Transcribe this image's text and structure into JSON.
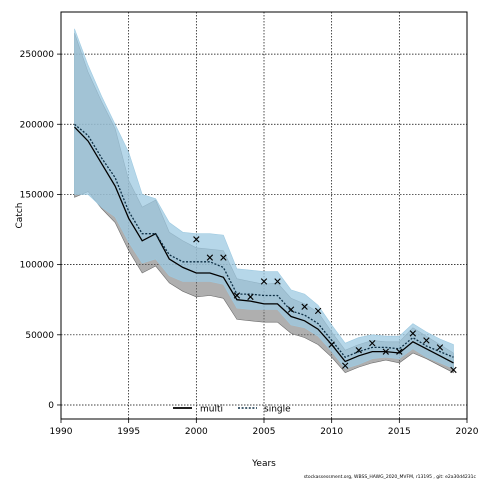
{
  "chart_data": {
    "type": "line",
    "xlabel": "Years",
    "ylabel": "Catch",
    "xlim": [
      1990,
      2020
    ],
    "ylim": [
      -10000,
      280000
    ],
    "x_ticks": [
      "1990",
      "1995",
      "2000",
      "2005",
      "2010",
      "2015",
      "2020"
    ],
    "y_ticks": [
      "0",
      "50000",
      "100000",
      "150000",
      "200000",
      "250000"
    ],
    "grid": true,
    "legend_position": "bottom-center",
    "legend": [
      "multi",
      "single"
    ],
    "footer": "stockassessment.org,  WBSS_HAWG_2020_MVFM, r13195 ,  git:  e2a30d4231c",
    "colors": {
      "multi_line": "#000000",
      "multi_band": "#6e6e6e",
      "single_line": "#1a5f8a",
      "single_band": "#9ecae1",
      "observed": "#000000"
    },
    "years": [
      1991,
      1992,
      1993,
      1994,
      1995,
      1996,
      1997,
      1998,
      1999,
      2000,
      2001,
      2002,
      2003,
      2004,
      2005,
      2006,
      2007,
      2008,
      2009,
      2010,
      2011,
      2012,
      2013,
      2014,
      2015,
      2016,
      2017,
      2018,
      2019
    ],
    "series": [
      {
        "name": "multi",
        "values": [
          198000,
          188000,
          172000,
          156000,
          133000,
          117000,
          122000,
          104000,
          98000,
          94000,
          94000,
          91000,
          75000,
          74000,
          72000,
          72000,
          63000,
          60000,
          54000,
          43000,
          31000,
          35000,
          38000,
          38000,
          37000,
          45000,
          40000,
          35000,
          30000
        ],
        "lower": [
          148000,
          152000,
          140000,
          130000,
          110000,
          94000,
          99000,
          87000,
          81000,
          77000,
          78000,
          76000,
          61000,
          60000,
          59000,
          59000,
          51000,
          48000,
          43000,
          34000,
          23000,
          27000,
          30000,
          32000,
          30000,
          37000,
          33000,
          28000,
          23000
        ],
        "upper": [
          265000,
          237000,
          216000,
          197000,
          160000,
          141000,
          146000,
          123000,
          117000,
          112000,
          111000,
          110000,
          90000,
          88000,
          86000,
          87000,
          76000,
          72000,
          66000,
          52000,
          39000,
          43000,
          46000,
          45000,
          45000,
          55000,
          49000,
          43000,
          37000
        ]
      },
      {
        "name": "single",
        "values": [
          200000,
          192000,
          176000,
          162000,
          138000,
          122000,
          122000,
          107000,
          102000,
          102000,
          102000,
          98000,
          79000,
          79000,
          78000,
          78000,
          67000,
          64000,
          58000,
          46000,
          34000,
          38000,
          41000,
          41000,
          40000,
          48000,
          42000,
          38000,
          34000
        ],
        "lower": [
          150000,
          150000,
          141000,
          134000,
          116000,
          101000,
          104000,
          92000,
          88000,
          88000,
          88000,
          86000,
          69000,
          68000,
          68000,
          68000,
          57000,
          55000,
          49000,
          38000,
          26000,
          29000,
          33000,
          34000,
          33000,
          40000,
          34000,
          30000,
          26000
        ],
        "upper": [
          268000,
          242000,
          220000,
          200000,
          180000,
          150000,
          147000,
          130000,
          123000,
          122000,
          122000,
          121000,
          97000,
          96000,
          95000,
          95000,
          82000,
          79000,
          71000,
          57000,
          44000,
          48000,
          50000,
          49000,
          49000,
          58000,
          52000,
          47000,
          43000
        ]
      }
    ],
    "observed": {
      "x": [
        2000,
        2001,
        2002,
        2003,
        2004,
        2005,
        2006,
        2007,
        2008,
        2009,
        2010,
        2011,
        2012,
        2013,
        2014,
        2015,
        2016,
        2017,
        2018,
        2019
      ],
      "y": [
        118000,
        105000,
        105000,
        78000,
        77000,
        88000,
        88000,
        68000,
        70000,
        67000,
        43000,
        28000,
        39000,
        44000,
        38000,
        38000,
        51000,
        46000,
        41000,
        25000
      ]
    }
  }
}
